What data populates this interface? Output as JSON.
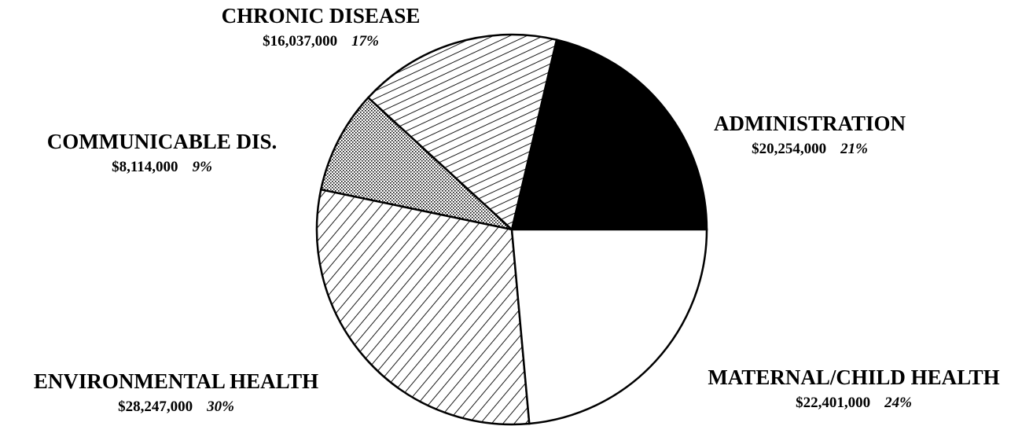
{
  "chart_data": {
    "type": "pie",
    "categories": [
      "ADMINISTRATION",
      "CHRONIC DISEASE",
      "COMMUNICABLE DIS.",
      "ENVIRONMENTAL HEALTH",
      "MATERNAL/CHILD HEALTH"
    ],
    "values": [
      20254000,
      16037000,
      8114000,
      28247000,
      22401000
    ],
    "value_labels": [
      "$20,254,000",
      "$16,037,000",
      "$8,114,000",
      "$28,247,000",
      "$22,401,000"
    ],
    "percent_labels": [
      "21%",
      "17%",
      "9%",
      "30%",
      "24%"
    ]
  }
}
